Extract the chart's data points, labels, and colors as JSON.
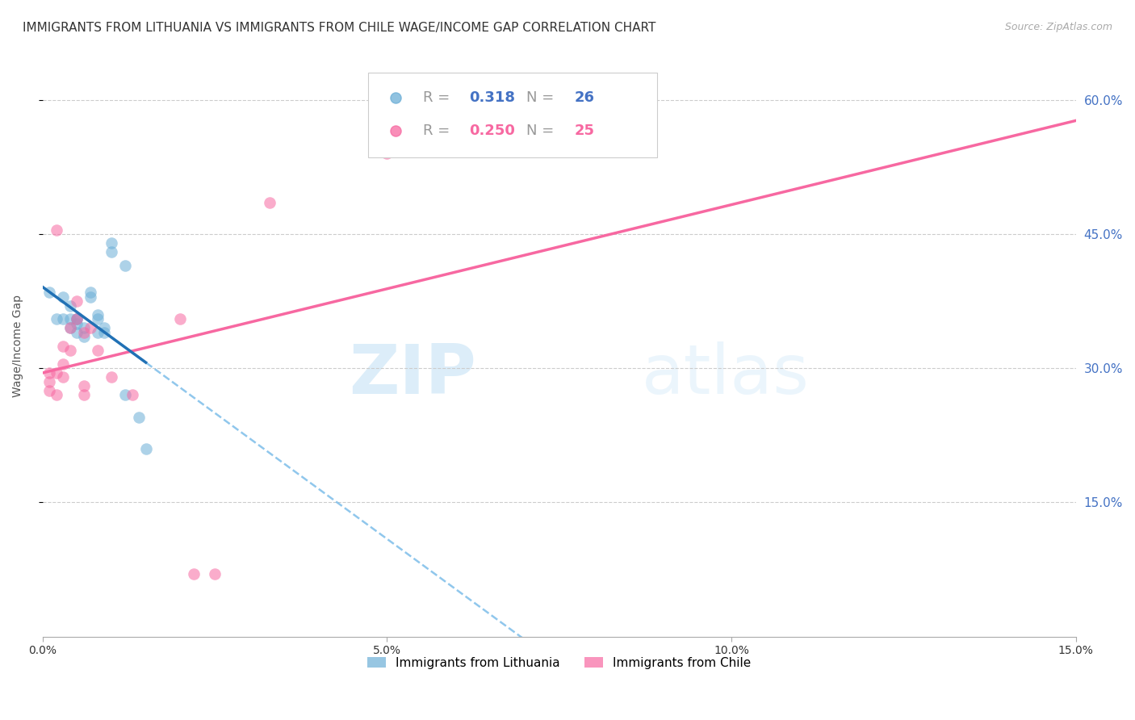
{
  "title": "IMMIGRANTS FROM LITHUANIA VS IMMIGRANTS FROM CHILE WAGE/INCOME GAP CORRELATION CHART",
  "source": "Source: ZipAtlas.com",
  "ylabel": "Wage/Income Gap",
  "xmin": 0.0,
  "xmax": 0.15,
  "ymin": 0.0,
  "ymax": 0.65,
  "yticks": [
    0.15,
    0.3,
    0.45,
    0.6
  ],
  "ytick_labels": [
    "15.0%",
    "30.0%",
    "45.0%",
    "60.0%"
  ],
  "xtick_vals": [
    0.0,
    0.05,
    0.1,
    0.15
  ],
  "xtick_labels": [
    "0.0%",
    "5.0%",
    "10.0%",
    "15.0%"
  ],
  "watermark": "ZIPatlas",
  "legend_v1": "0.318",
  "legend_c1": "26",
  "legend_v2": "0.250",
  "legend_c2": "25",
  "lithuania_color": "#6baed6",
  "chile_color": "#f768a1",
  "lithuania_line_color": "#2171b5",
  "chile_line_color": "#f768a1",
  "lithuania_dash_color": "#74b9e8",
  "lithuania_points": [
    [
      0.001,
      0.385
    ],
    [
      0.002,
      0.355
    ],
    [
      0.003,
      0.38
    ],
    [
      0.003,
      0.355
    ],
    [
      0.004,
      0.37
    ],
    [
      0.004,
      0.355
    ],
    [
      0.004,
      0.345
    ],
    [
      0.005,
      0.355
    ],
    [
      0.005,
      0.355
    ],
    [
      0.005,
      0.34
    ],
    [
      0.005,
      0.35
    ],
    [
      0.006,
      0.345
    ],
    [
      0.006,
      0.335
    ],
    [
      0.007,
      0.385
    ],
    [
      0.007,
      0.38
    ],
    [
      0.008,
      0.36
    ],
    [
      0.008,
      0.355
    ],
    [
      0.008,
      0.34
    ],
    [
      0.009,
      0.345
    ],
    [
      0.009,
      0.34
    ],
    [
      0.01,
      0.44
    ],
    [
      0.01,
      0.43
    ],
    [
      0.012,
      0.415
    ],
    [
      0.012,
      0.27
    ],
    [
      0.014,
      0.245
    ],
    [
      0.015,
      0.21
    ]
  ],
  "chile_points": [
    [
      0.001,
      0.285
    ],
    [
      0.001,
      0.275
    ],
    [
      0.001,
      0.295
    ],
    [
      0.002,
      0.27
    ],
    [
      0.002,
      0.455
    ],
    [
      0.002,
      0.295
    ],
    [
      0.003,
      0.305
    ],
    [
      0.003,
      0.325
    ],
    [
      0.003,
      0.29
    ],
    [
      0.004,
      0.345
    ],
    [
      0.004,
      0.32
    ],
    [
      0.005,
      0.375
    ],
    [
      0.005,
      0.355
    ],
    [
      0.006,
      0.34
    ],
    [
      0.006,
      0.27
    ],
    [
      0.006,
      0.28
    ],
    [
      0.007,
      0.345
    ],
    [
      0.008,
      0.32
    ],
    [
      0.01,
      0.29
    ],
    [
      0.013,
      0.27
    ],
    [
      0.02,
      0.355
    ],
    [
      0.022,
      0.07
    ],
    [
      0.025,
      0.07
    ],
    [
      0.033,
      0.485
    ],
    [
      0.05,
      0.54
    ]
  ],
  "title_fontsize": 11,
  "source_fontsize": 9,
  "axis_label_fontsize": 10,
  "tick_fontsize": 10,
  "background_color": "#ffffff",
  "grid_color": "#cccccc",
  "right_axis_color": "#4472c4",
  "scatter_alpha": 0.55,
  "scatter_size": 110
}
